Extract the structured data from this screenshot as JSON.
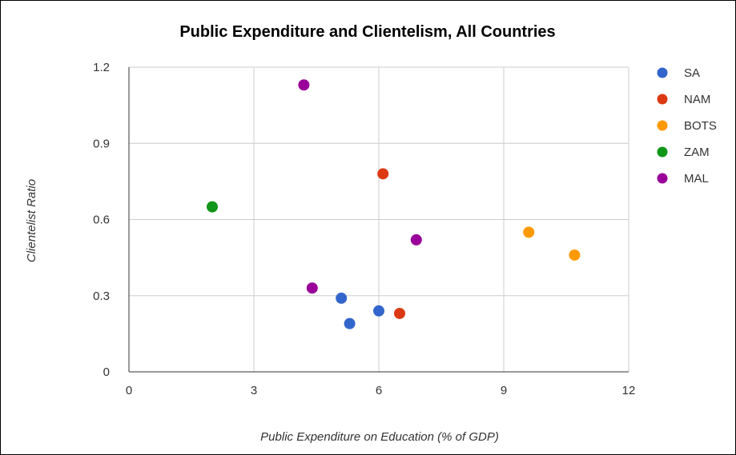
{
  "chart_data": {
    "type": "scatter",
    "title": "Public Expenditure and Clientelism, All Countries",
    "xlabel": "Public Expenditure on Education (% of GDP)",
    "ylabel": "Clientelist Ratio",
    "xlim": [
      0,
      12
    ],
    "ylim": [
      0,
      1.2
    ],
    "x_ticks": [
      "0",
      "3",
      "6",
      "9",
      "12"
    ],
    "y_ticks": [
      "0",
      "0.3",
      "0.6",
      "0.9",
      "1.2"
    ],
    "grid": true,
    "legend_position": "right",
    "series": [
      {
        "name": "SA",
        "color": "#3366cc",
        "points": [
          [
            5.1,
            0.29
          ],
          [
            5.3,
            0.19
          ],
          [
            6.0,
            0.24
          ]
        ]
      },
      {
        "name": "NAM",
        "color": "#dc3912",
        "points": [
          [
            6.1,
            0.78
          ],
          [
            6.5,
            0.23
          ]
        ]
      },
      {
        "name": "BOTS",
        "color": "#ff9900",
        "points": [
          [
            9.6,
            0.55
          ],
          [
            10.7,
            0.46
          ]
        ]
      },
      {
        "name": "ZAM",
        "color": "#109618",
        "points": [
          [
            2.0,
            0.65
          ]
        ]
      },
      {
        "name": "MAL",
        "color": "#990099",
        "points": [
          [
            4.2,
            1.13
          ],
          [
            4.4,
            0.33
          ],
          [
            6.9,
            0.52
          ]
        ]
      }
    ]
  }
}
